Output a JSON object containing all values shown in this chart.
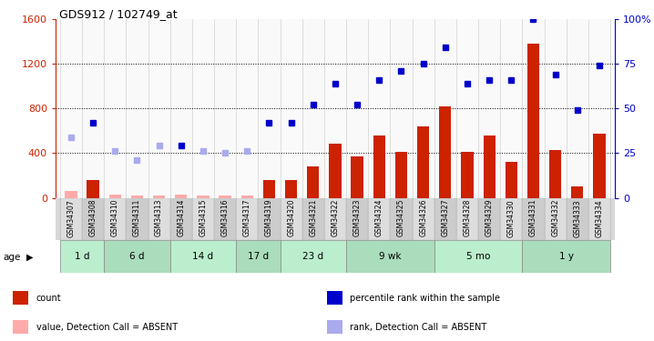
{
  "title": "GDS912 / 102749_at",
  "samples": [
    "GSM34307",
    "GSM34308",
    "GSM34310",
    "GSM34311",
    "GSM34313",
    "GSM34314",
    "GSM34315",
    "GSM34316",
    "GSM34317",
    "GSM34319",
    "GSM34320",
    "GSM34321",
    "GSM34322",
    "GSM34323",
    "GSM34324",
    "GSM34325",
    "GSM34326",
    "GSM34327",
    "GSM34328",
    "GSM34329",
    "GSM34330",
    "GSM34331",
    "GSM34332",
    "GSM34333",
    "GSM34334"
  ],
  "count_values": [
    null,
    160,
    null,
    null,
    null,
    null,
    null,
    null,
    null,
    160,
    160,
    280,
    480,
    370,
    560,
    410,
    640,
    820,
    410,
    560,
    320,
    1380,
    430,
    100,
    570
  ],
  "count_absent": [
    60,
    null,
    30,
    20,
    20,
    30,
    20,
    20,
    20,
    null,
    null,
    null,
    null,
    null,
    null,
    null,
    null,
    null,
    null,
    null,
    null,
    null,
    null,
    null,
    null
  ],
  "rank_values": [
    null,
    42,
    null,
    null,
    null,
    29,
    null,
    null,
    null,
    42,
    42,
    52,
    64,
    52,
    66,
    71,
    75,
    84,
    64,
    66,
    66,
    100,
    69,
    49,
    74
  ],
  "rank_absent": [
    34,
    null,
    26,
    21,
    29,
    null,
    26,
    25,
    26,
    null,
    null,
    null,
    null,
    null,
    null,
    null,
    null,
    null,
    null,
    null,
    null,
    null,
    null,
    null,
    null
  ],
  "age_groups": [
    {
      "label": "1 d",
      "start": 0,
      "end": 2
    },
    {
      "label": "6 d",
      "start": 2,
      "end": 5
    },
    {
      "label": "14 d",
      "start": 5,
      "end": 8
    },
    {
      "label": "17 d",
      "start": 8,
      "end": 10
    },
    {
      "label": "23 d",
      "start": 10,
      "end": 13
    },
    {
      "label": "9 wk",
      "start": 13,
      "end": 17
    },
    {
      "label": "5 mo",
      "start": 17,
      "end": 21
    },
    {
      "label": "1 y",
      "start": 21,
      "end": 25
    }
  ],
  "ylim_left": [
    0,
    1600
  ],
  "ylim_right": [
    0,
    100
  ],
  "left_yticks": [
    0,
    400,
    800,
    1200,
    1600
  ],
  "right_yticks": [
    0,
    25,
    50,
    75,
    100
  ],
  "bar_color": "#cc2200",
  "bar_absent_color": "#ffaaaa",
  "rank_color": "#0000cc",
  "rank_absent_color": "#aaaaee",
  "legend_items": [
    {
      "label": "count",
      "color": "#cc2200"
    },
    {
      "label": "percentile rank within the sample",
      "color": "#0000cc"
    },
    {
      "label": "value, Detection Call = ABSENT",
      "color": "#ffaaaa"
    },
    {
      "label": "rank, Detection Call = ABSENT",
      "color": "#aaaaee"
    }
  ],
  "right_axis_color": "#0000cc",
  "left_axis_color": "#cc2200"
}
